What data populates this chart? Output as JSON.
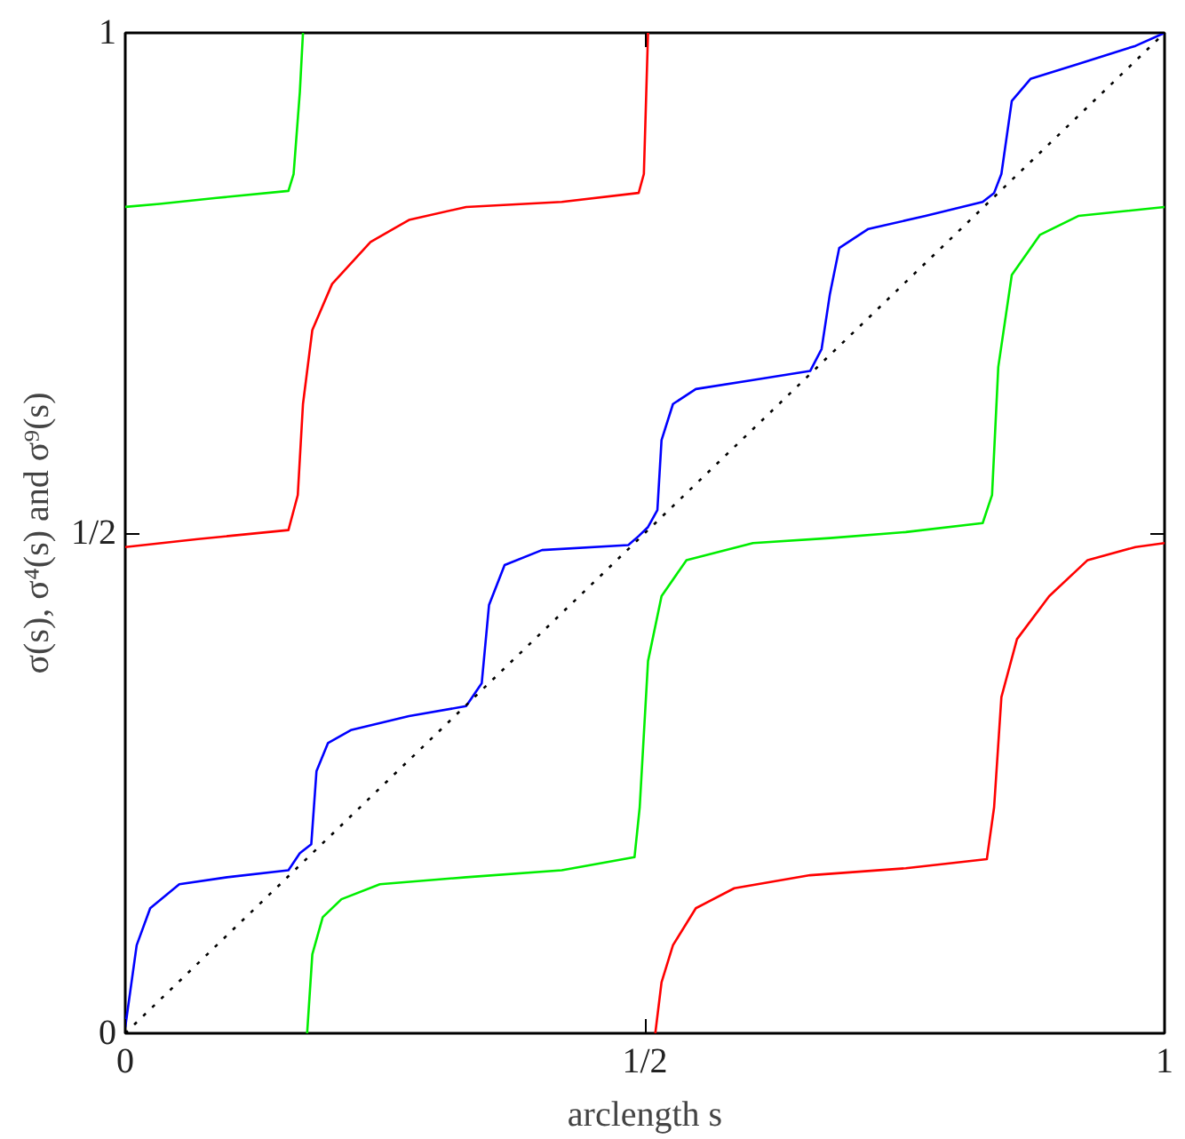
{
  "chart_data": {
    "type": "line",
    "xlabel": "arclength s",
    "ylabel": "σ(s), σ⁴(s) and σ⁹(s)",
    "xlim": [
      0,
      1
    ],
    "ylim": [
      0,
      1
    ],
    "xticks": [
      0,
      {
        "value": 0.5,
        "label": "1/2"
      },
      1
    ],
    "yticks": [
      0,
      {
        "value": 0.5,
        "label": "1/2"
      },
      1
    ],
    "series": [
      {
        "color": "#ff0000",
        "x": [
          0,
          0.07,
          0.157,
          0.166,
          0.171,
          0.18,
          0.199,
          0.236,
          0.273,
          0.328,
          0.42,
          0.494,
          0.499,
          0.503,
          0.507,
          0.51,
          0.516,
          0.527,
          0.549,
          0.586,
          0.659,
          0.751,
          0.829,
          0.836,
          0.843,
          0.858,
          0.889,
          0.926,
          0.972,
          1
        ],
        "values": [
          0.486,
          0.494,
          0.503,
          0.538,
          0.629,
          0.703,
          0.749,
          0.791,
          0.813,
          0.826,
          0.831,
          0.84,
          0.859,
          1,
          null,
          0,
          0.051,
          0.088,
          0.125,
          0.145,
          0.158,
          0.165,
          0.174,
          0.226,
          0.336,
          0.394,
          0.437,
          0.473,
          0.486,
          0.49
        ]
      },
      {
        "color": "#00ee00",
        "x": [
          0,
          0.033,
          0.088,
          0.157,
          0.162,
          0.168,
          0.171,
          0.173,
          0.175,
          0.18,
          0.19,
          0.208,
          0.245,
          0.328,
          0.42,
          0.49,
          0.495,
          0.503,
          0.516,
          0.54,
          0.604,
          0.678,
          0.751,
          0.825,
          0.834,
          0.84,
          0.853,
          0.88,
          0.917,
          1
        ],
        "values": [
          0.826,
          0.829,
          0.835,
          0.842,
          0.859,
          0.941,
          1,
          null,
          0,
          0.079,
          0.116,
          0.134,
          0.149,
          0.156,
          0.163,
          0.176,
          0.226,
          0.372,
          0.437,
          0.473,
          0.49,
          0.495,
          0.501,
          0.51,
          0.538,
          0.666,
          0.758,
          0.798,
          0.817,
          0.826
        ]
      },
      {
        "color": "#0000ff",
        "x": [
          0,
          0.011,
          0.024,
          0.052,
          0.098,
          0.157,
          0.168,
          0.179,
          0.184,
          0.195,
          0.217,
          0.273,
          0.328,
          0.343,
          0.35,
          0.365,
          0.401,
          0.484,
          0.494,
          0.503,
          0.512,
          0.516,
          0.527,
          0.549,
          0.604,
          0.659,
          0.67,
          0.678,
          0.687,
          0.715,
          0.77,
          0.825,
          0.836,
          0.843,
          0.853,
          0.871,
          0.917,
          0.972,
          1
        ],
        "values": [
          0.006,
          0.088,
          0.125,
          0.149,
          0.156,
          0.163,
          0.18,
          0.189,
          0.262,
          0.29,
          0.303,
          0.317,
          0.327,
          0.35,
          0.428,
          0.468,
          0.483,
          0.488,
          0.497,
          0.506,
          0.523,
          0.593,
          0.629,
          0.644,
          0.653,
          0.662,
          0.684,
          0.739,
          0.785,
          0.804,
          0.817,
          0.831,
          0.84,
          0.859,
          0.932,
          0.954,
          0.969,
          0.987,
          1
        ]
      },
      {
        "color": "#000000",
        "line_style": "dotted",
        "x": [
          0,
          1
        ],
        "values": [
          0,
          1
        ]
      }
    ]
  }
}
